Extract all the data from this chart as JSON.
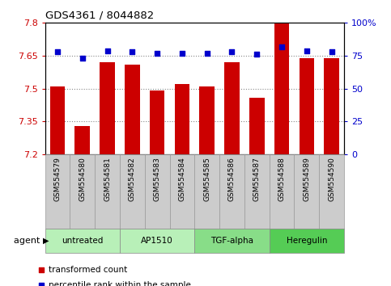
{
  "title": "GDS4361 / 8044882",
  "samples": [
    "GSM554579",
    "GSM554580",
    "GSM554581",
    "GSM554582",
    "GSM554583",
    "GSM554584",
    "GSM554585",
    "GSM554586",
    "GSM554587",
    "GSM554588",
    "GSM554589",
    "GSM554590"
  ],
  "bar_values": [
    7.51,
    7.33,
    7.62,
    7.61,
    7.49,
    7.52,
    7.51,
    7.62,
    7.46,
    7.8,
    7.64,
    7.64
  ],
  "percentile_values": [
    78,
    73,
    79,
    78,
    77,
    77,
    77,
    78,
    76,
    82,
    79,
    78
  ],
  "ylim_left": [
    7.2,
    7.8
  ],
  "ylim_right": [
    0,
    100
  ],
  "yticks_left": [
    7.2,
    7.35,
    7.5,
    7.65,
    7.8
  ],
  "yticks_right": [
    0,
    25,
    50,
    75,
    100
  ],
  "ytick_labels_left": [
    "7.2",
    "7.35",
    "7.5",
    "7.65",
    "7.8"
  ],
  "ytick_labels_right": [
    "0",
    "25",
    "50",
    "75",
    "100%"
  ],
  "gridlines": [
    7.35,
    7.5,
    7.65
  ],
  "bar_color": "#cc0000",
  "dot_color": "#0000cc",
  "bar_bottom": 7.2,
  "agent_groups": [
    {
      "label": "untreated",
      "start": 0,
      "end": 2
    },
    {
      "label": "AP1510",
      "start": 3,
      "end": 5
    },
    {
      "label": "TGF-alpha",
      "start": 6,
      "end": 8
    },
    {
      "label": "Heregulin",
      "start": 9,
      "end": 11
    }
  ],
  "group_colors": [
    "#b8f0b8",
    "#b8f0b8",
    "#88dd88",
    "#55cc55"
  ],
  "sample_box_color": "#cccccc",
  "sample_box_edge": "#999999",
  "left_tick_color": "#cc0000",
  "right_tick_color": "#0000cc",
  "legend_items": [
    {
      "label": "transformed count",
      "color": "#cc0000"
    },
    {
      "label": "percentile rank within the sample",
      "color": "#0000cc"
    }
  ]
}
